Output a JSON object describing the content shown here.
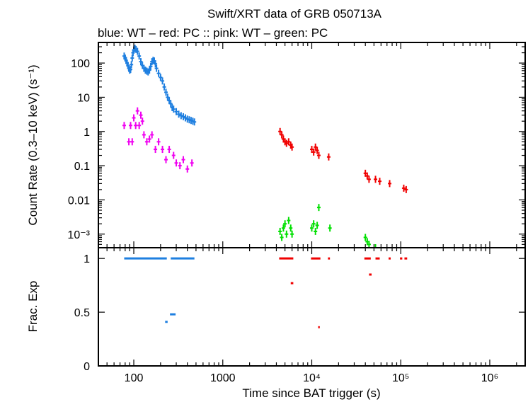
{
  "chart_data": {
    "type": "scatter",
    "title": "Swift/XRT data of GRB 050713A",
    "subtitle": "blue: WT  – red: PC  :: pink: WT  – green: PC",
    "xlabel": "Time since BAT trigger (s)",
    "x_scale": "log",
    "xlim": [
      40,
      2500000
    ],
    "x_ticks": [
      {
        "value": 100,
        "label": "100"
      },
      {
        "value": 1000,
        "label": "1000"
      },
      {
        "value": 10000,
        "label": "10⁴"
      },
      {
        "value": 100000,
        "label": "10⁵"
      },
      {
        "value": 1000000,
        "label": "10⁶"
      }
    ],
    "top_panel": {
      "ylabel": "Count Rate (0.3–10 keV) (s⁻¹)",
      "y_scale": "log",
      "ylim": [
        0.0004,
        400
      ],
      "y_ticks": [
        {
          "value": 100,
          "label": "100"
        },
        {
          "value": 10,
          "label": "10"
        },
        {
          "value": 1,
          "label": "1"
        },
        {
          "value": 0.1,
          "label": "0.1"
        },
        {
          "value": 0.01,
          "label": "0.01"
        },
        {
          "value": 0.001,
          "label": "10⁻³"
        }
      ],
      "series": [
        {
          "color": "#1e7fe0",
          "points": [
            [
              78,
              160
            ],
            [
              80,
              140
            ],
            [
              82,
              120
            ],
            [
              84,
              100
            ],
            [
              86,
              85
            ],
            [
              88,
              70
            ],
            [
              90,
              62
            ],
            [
              92,
              65
            ],
            [
              94,
              90
            ],
            [
              96,
              140
            ],
            [
              98,
              200
            ],
            [
              100,
              240
            ],
            [
              103,
              270
            ],
            [
              106,
              250
            ],
            [
              110,
              220
            ],
            [
              115,
              160
            ],
            [
              120,
              110
            ],
            [
              125,
              85
            ],
            [
              130,
              70
            ],
            [
              135,
              62
            ],
            [
              140,
              58
            ],
            [
              145,
              55
            ],
            [
              150,
              62
            ],
            [
              155,
              80
            ],
            [
              160,
              110
            ],
            [
              165,
              120
            ],
            [
              170,
              115
            ],
            [
              175,
              95
            ],
            [
              180,
              70
            ],
            [
              190,
              50
            ],
            [
              200,
              38
            ],
            [
              210,
              30
            ],
            [
              220,
              20
            ],
            [
              230,
              14
            ],
            [
              240,
              10
            ],
            [
              250,
              8
            ],
            [
              260,
              6.5
            ],
            [
              270,
              5
            ],
            [
              280,
              4.5
            ],
            [
              300,
              3.8
            ],
            [
              320,
              3.2
            ],
            [
              340,
              2.9
            ],
            [
              360,
              2.7
            ],
            [
              380,
              2.5
            ],
            [
              400,
              2.3
            ],
            [
              420,
              2.2
            ],
            [
              440,
              2.1
            ],
            [
              460,
              2.0
            ],
            [
              480,
              1.9
            ]
          ]
        },
        {
          "color": "#f000f0",
          "points": [
            [
              78,
              1.5
            ],
            [
              88,
              0.5
            ],
            [
              92,
              1.5
            ],
            [
              96,
              0.5
            ],
            [
              100,
              2.5
            ],
            [
              105,
              1.5
            ],
            [
              110,
              4.0
            ],
            [
              115,
              1.5
            ],
            [
              120,
              3.0
            ],
            [
              125,
              2.0
            ],
            [
              130,
              0.8
            ],
            [
              140,
              0.5
            ],
            [
              150,
              0.6
            ],
            [
              160,
              0.8
            ],
            [
              175,
              0.3
            ],
            [
              190,
              0.5
            ],
            [
              210,
              0.3
            ],
            [
              230,
              0.15
            ],
            [
              250,
              0.3
            ],
            [
              280,
              0.2
            ],
            [
              300,
              0.12
            ],
            [
              330,
              0.1
            ],
            [
              360,
              0.15
            ],
            [
              400,
              0.08
            ],
            [
              450,
              0.12
            ]
          ]
        },
        {
          "color": "#f00000",
          "points": [
            [
              4400,
              1.0
            ],
            [
              4600,
              0.8
            ],
            [
              4800,
              0.6
            ],
            [
              5000,
              0.5
            ],
            [
              5200,
              0.45
            ],
            [
              5500,
              0.5
            ],
            [
              5800,
              0.4
            ],
            [
              6000,
              0.35
            ],
            [
              10000,
              0.3
            ],
            [
              10500,
              0.25
            ],
            [
              11000,
              0.35
            ],
            [
              11500,
              0.28
            ],
            [
              12000,
              0.2
            ],
            [
              15500,
              0.18
            ],
            [
              40000,
              0.06
            ],
            [
              42000,
              0.05
            ],
            [
              44000,
              0.04
            ],
            [
              52000,
              0.04
            ],
            [
              58000,
              0.035
            ],
            [
              75000,
              0.03
            ],
            [
              108000,
              0.022
            ],
            [
              115000,
              0.02
            ]
          ]
        },
        {
          "color": "#00e000",
          "points": [
            [
              4400,
              0.0012
            ],
            [
              4600,
              0.0008
            ],
            [
              4800,
              0.0015
            ],
            [
              5000,
              0.002
            ],
            [
              5200,
              0.001
            ],
            [
              5500,
              0.0025
            ],
            [
              5800,
              0.0015
            ],
            [
              6000,
              0.001
            ],
            [
              10000,
              0.0015
            ],
            [
              10500,
              0.002
            ],
            [
              11000,
              0.0012
            ],
            [
              11500,
              0.0018
            ],
            [
              12000,
              0.006
            ],
            [
              16000,
              0.0015
            ],
            [
              40000,
              0.0008
            ],
            [
              42000,
              0.0006
            ],
            [
              44000,
              0.0005
            ],
            [
              52000,
              0.0004
            ]
          ]
        }
      ]
    },
    "bottom_panel": {
      "ylabel": "Frac. Exp",
      "y_scale": "linear",
      "ylim": [
        0,
        1.1
      ],
      "y_ticks": [
        {
          "value": 0,
          "label": "0"
        },
        {
          "value": 0.5,
          "label": "0.5"
        },
        {
          "value": 1,
          "label": "1"
        }
      ],
      "series": [
        {
          "color": "#1e7fe0",
          "segments": [
            [
              78,
              235,
              1.0
            ],
            [
              260,
              480,
              1.0
            ],
            [
              225,
              240,
              0.41
            ],
            [
              255,
              295,
              0.48
            ]
          ]
        },
        {
          "color": "#f00000",
          "segments": [
            [
              4300,
              6200,
              1.0
            ],
            [
              9800,
              12500,
              1.0
            ],
            [
              15200,
              16000,
              1.0
            ],
            [
              39000,
              46000,
              1.0
            ],
            [
              52000,
              58000,
              1.0
            ],
            [
              73000,
              77000,
              1.0
            ],
            [
              98000,
              104000,
              1.0
            ],
            [
              110000,
              118000,
              1.0
            ],
            [
              5800,
              6200,
              0.77
            ],
            [
              44000,
              47000,
              0.85
            ],
            [
              11800,
              12300,
              0.36
            ]
          ]
        }
      ]
    }
  }
}
